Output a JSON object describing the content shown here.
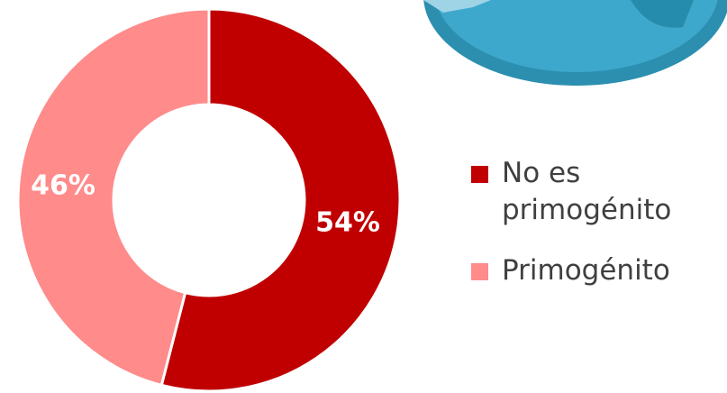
{
  "chart_data": {
    "type": "pie",
    "variant": "donut",
    "slices": [
      {
        "label": "No es primogénito",
        "value": 54,
        "value_label": "54%",
        "color": "#C00000"
      },
      {
        "label": "Primogénito",
        "value": 46,
        "value_label": "46%",
        "color": "#FF8B8B"
      }
    ],
    "legend_position": "right",
    "colors": {
      "slice_border": "#ffffff",
      "ornament_blue": "#3DA8CC",
      "ornament_blue_dark": "#2C8FB0"
    }
  }
}
